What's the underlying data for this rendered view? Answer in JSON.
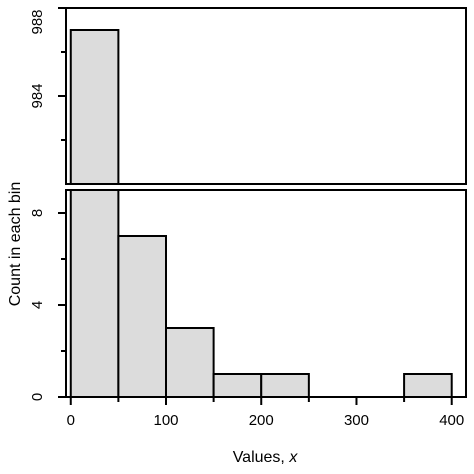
{
  "chart_data": {
    "type": "bar",
    "subtype": "histogram-broken-axis",
    "title": "",
    "xlabel": "Values, ",
    "xlabel_var": "x",
    "ylabel": "Count in each bin",
    "bin_edges": [
      0,
      50,
      100,
      150,
      200,
      250,
      300,
      350,
      400
    ],
    "counts": [
      987,
      7,
      3,
      1,
      1,
      0,
      0,
      1
    ],
    "xlim": [
      -5,
      415
    ],
    "xticks": [
      "0",
      "100",
      "200",
      "300",
      "400"
    ],
    "xtick_values": [
      0,
      100,
      200,
      300,
      400
    ],
    "lower_panel": {
      "ylim": [
        0,
        9
      ],
      "yticks": [
        "0",
        "4",
        "8"
      ],
      "ytick_values": [
        0,
        4,
        8
      ]
    },
    "upper_panel": {
      "ylim": [
        980,
        988
      ],
      "yticks": [
        "984",
        "988"
      ],
      "ytick_values": [
        984,
        988
      ]
    },
    "bar_color": "#dcdcdc",
    "edge_color": "#000000",
    "grid": false,
    "legend": "none"
  }
}
